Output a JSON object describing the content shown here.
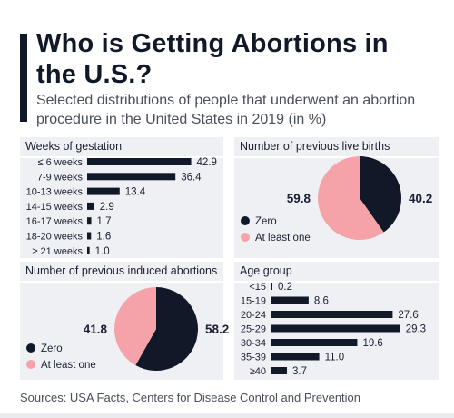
{
  "header": {
    "title": "Who is Getting Abortions in the U.S.?",
    "subtitle": "Selected distributions of people that underwent an abortion procedure in the United States in 2019 (in %)"
  },
  "footer": {
    "source": "Sources: USA Facts, Centers for Disease Control and Prevention"
  },
  "colors": {
    "dark": "#111827",
    "pink": "#f5a3a8",
    "panel": "#eef0f4"
  },
  "chart_data": [
    {
      "type": "bar",
      "title": "Weeks of gestation",
      "categories": [
        "≤ 6 weeks",
        "7-9 weeks",
        "10-13 weeks",
        "14-15 weeks",
        "16-17 weeks",
        "18-20 weeks",
        "≥ 21 weeks"
      ],
      "values": [
        42.9,
        36.4,
        13.4,
        2.9,
        1.7,
        1.6,
        1.0
      ],
      "value_labels": [
        "42.9",
        "36.4",
        "13.4",
        "2.9",
        "1.7",
        "1.6",
        "1.0"
      ]
    },
    {
      "type": "pie",
      "title": "Number of previous live births",
      "labels": [
        "Zero",
        "At least one"
      ],
      "values": [
        40.2,
        59.8
      ],
      "value_labels": [
        "40.2",
        "59.8"
      ],
      "colors": [
        "#111827",
        "#f5a3a8"
      ],
      "legend": "bottom-left"
    },
    {
      "type": "pie",
      "title": "Number of previous induced abortions",
      "labels": [
        "Zero",
        "At least one"
      ],
      "values": [
        58.2,
        41.8
      ],
      "value_labels": [
        "58.2",
        "41.8"
      ],
      "colors": [
        "#111827",
        "#f5a3a8"
      ],
      "legend": "bottom-left"
    },
    {
      "type": "bar",
      "title": "Age group",
      "categories": [
        "<15",
        "15-19",
        "20-24",
        "25-29",
        "30-34",
        "35-39",
        "≥40"
      ],
      "values": [
        0.2,
        8.6,
        27.6,
        29.3,
        19.6,
        11.0,
        3.7
      ],
      "value_labels": [
        "0.2",
        "8.6",
        "27.6",
        "29.3",
        "19.6",
        "11.0",
        "3.7"
      ]
    }
  ]
}
